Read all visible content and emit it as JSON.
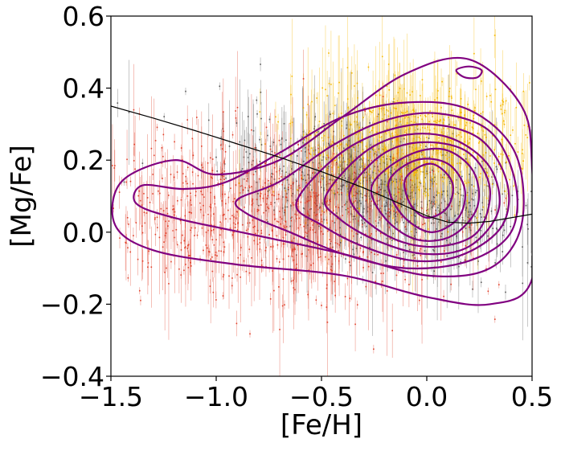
{
  "chart_data": {
    "type": "scatter",
    "title": "",
    "xlabel": "[Fe/H]",
    "ylabel": "[Mg/Fe]",
    "xlim": [
      -1.5,
      0.5
    ],
    "ylim": [
      -0.4,
      0.6
    ],
    "xticks": [
      -1.5,
      -1.0,
      -0.5,
      0.0,
      0.5
    ],
    "xtick_labels": [
      "−1.5",
      "−1.0",
      "−0.5",
      "0.0",
      "0.5"
    ],
    "yticks": [
      -0.4,
      -0.2,
      0.0,
      0.2,
      0.4,
      0.6
    ],
    "ytick_labels": [
      "−0.4",
      "−0.2",
      "0.0",
      "0.2",
      "0.4",
      "0.6"
    ],
    "grid": false,
    "colors": {
      "gray_series": "#5a5a5a",
      "gold_series": "#f5b800",
      "red_series": "#e0402a",
      "contours": "#800080",
      "fit_line": "#000000"
    },
    "series": [
      {
        "name": "gray",
        "center": [
          -0.25,
          0.12
        ],
        "spread": [
          0.35,
          0.08
        ]
      },
      {
        "name": "gold",
        "center": [
          -0.05,
          0.24
        ],
        "spread": [
          0.28,
          0.09
        ]
      },
      {
        "name": "red",
        "center": [
          -0.75,
          0.04
        ],
        "spread": [
          0.45,
          0.11
        ]
      }
    ],
    "fit_line": {
      "x": [
        -1.5,
        -1.3,
        -1.1,
        -0.9,
        -0.7,
        -0.5,
        -0.3,
        -0.1,
        0.0,
        0.1,
        0.2,
        0.3,
        0.4,
        0.5
      ],
      "y": [
        0.35,
        0.317,
        0.282,
        0.245,
        0.208,
        0.168,
        0.123,
        0.072,
        0.045,
        0.028,
        0.025,
        0.03,
        0.04,
        0.05
      ]
    },
    "contours": [
      {
        "x": [
          -1.48,
          -1.45,
          -1.2,
          -1.0,
          -0.7,
          -0.4,
          -0.1,
          0.2,
          0.45,
          0.5,
          0.5,
          0.3,
          0.0,
          -0.4,
          -0.9,
          -1.3,
          -1.48
        ],
        "y": [
          0.02,
          0.14,
          0.2,
          0.16,
          0.2,
          0.32,
          0.44,
          0.48,
          0.35,
          0.18,
          -0.13,
          -0.2,
          -0.18,
          -0.12,
          -0.09,
          -0.05,
          0.02
        ]
      },
      {
        "x": [
          -1.38,
          -1.35,
          -1.15,
          -0.95,
          -0.7,
          -0.4,
          -0.1,
          0.2,
          0.42,
          0.45,
          0.3,
          0.0,
          -0.4,
          -0.8,
          -1.2,
          -1.38
        ],
        "y": [
          0.08,
          0.13,
          0.12,
          0.14,
          0.22,
          0.32,
          0.36,
          0.34,
          0.22,
          0.02,
          -0.1,
          -0.12,
          -0.06,
          -0.01,
          0.04,
          0.08
        ]
      },
      {
        "x": [
          -0.9,
          -0.7,
          -0.45,
          -0.2,
          0.05,
          0.3,
          0.42,
          0.4,
          0.2,
          -0.1,
          -0.4,
          -0.65,
          -0.85,
          -0.9
        ],
        "y": [
          0.09,
          0.14,
          0.24,
          0.31,
          0.33,
          0.28,
          0.14,
          0.0,
          -0.08,
          -0.1,
          -0.06,
          0.0,
          0.05,
          0.09
        ]
      },
      {
        "x": [
          -0.62,
          -0.45,
          -0.25,
          0.0,
          0.25,
          0.38,
          0.36,
          0.18,
          -0.05,
          -0.3,
          -0.5,
          -0.62
        ],
        "y": [
          0.08,
          0.2,
          0.27,
          0.3,
          0.26,
          0.14,
          0.02,
          -0.06,
          -0.08,
          -0.04,
          0.02,
          0.08
        ]
      },
      {
        "x": [
          -0.48,
          -0.3,
          -0.1,
          0.12,
          0.3,
          0.34,
          0.2,
          -0.02,
          -0.25,
          -0.42,
          -0.48
        ],
        "y": [
          0.1,
          0.22,
          0.27,
          0.26,
          0.18,
          0.06,
          -0.04,
          -0.06,
          -0.02,
          0.04,
          0.1
        ]
      },
      {
        "x": [
          -0.36,
          -0.2,
          0.0,
          0.2,
          0.3,
          0.24,
          0.05,
          -0.15,
          -0.32,
          -0.36
        ],
        "y": [
          0.12,
          0.22,
          0.25,
          0.22,
          0.12,
          0.0,
          -0.04,
          -0.02,
          0.05,
          0.12
        ]
      },
      {
        "x": [
          -0.26,
          -0.1,
          0.08,
          0.22,
          0.24,
          0.12,
          -0.05,
          -0.2,
          -0.26
        ],
        "y": [
          0.13,
          0.21,
          0.23,
          0.17,
          0.07,
          -0.01,
          -0.02,
          0.04,
          0.13
        ]
      },
      {
        "x": [
          -0.18,
          -0.05,
          0.1,
          0.18,
          0.15,
          0.02,
          -0.12,
          -0.18
        ],
        "y": [
          0.14,
          0.2,
          0.19,
          0.12,
          0.04,
          0.0,
          0.05,
          0.14
        ]
      },
      {
        "x": [
          -0.1,
          0.02,
          0.12,
          0.1,
          0.0,
          -0.08,
          -0.1
        ],
        "y": [
          0.15,
          0.19,
          0.14,
          0.07,
          0.04,
          0.08,
          0.15
        ]
      },
      {
        "x": [
          0.14,
          0.2,
          0.26,
          0.24,
          0.18,
          0.14
        ],
        "y": [
          0.45,
          0.46,
          0.45,
          0.43,
          0.43,
          0.45
        ]
      }
    ]
  }
}
